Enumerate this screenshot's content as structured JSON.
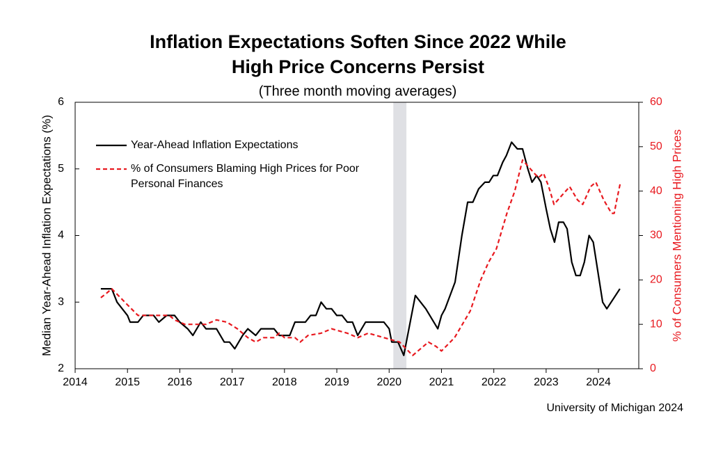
{
  "chart_data": {
    "type": "line",
    "title": "Inflation Expectations Soften Since 2022 While High Price Concerns Persist",
    "subtitle": "(Three month moving averages)",
    "y_label": "Median Year-Ahead Inflation Expectations (%)",
    "y2_label": "% of Consumers Mentioning High Prices",
    "source": "University of Michigan 2024",
    "xlim": [
      2014,
      2024.77
    ],
    "xticks": [
      2014,
      2015,
      2016,
      2017,
      2018,
      2019,
      2020,
      2021,
      2022,
      2023,
      2024
    ],
    "ylim": [
      2,
      6
    ],
    "yticks": [
      2,
      3,
      4,
      5,
      6
    ],
    "y2lim": [
      0,
      60
    ],
    "y2ticks": [
      0,
      10,
      20,
      30,
      40,
      50,
      60
    ],
    "shaded_region": [
      2020.08,
      2020.33
    ],
    "legend": "upper left",
    "series": [
      {
        "name": "Year-Ahead Inflation Expectations",
        "color": "#000000",
        "dash": "solid",
        "x": [
          2014.49,
          2014.7,
          2014.8,
          2015.0,
          2015.05,
          2015.2,
          2015.3,
          2015.5,
          2015.6,
          2015.75,
          2015.9,
          2016.0,
          2016.15,
          2016.25,
          2016.4,
          2016.5,
          2016.7,
          2016.85,
          2016.95,
          2017.05,
          2017.2,
          2017.3,
          2017.45,
          2017.55,
          2017.8,
          2017.9,
          2018.1,
          2018.2,
          2018.4,
          2018.5,
          2018.6,
          2018.7,
          2018.8,
          2018.9,
          2019.0,
          2019.1,
          2019.2,
          2019.3,
          2019.4,
          2019.55,
          2019.9,
          2020.0,
          2020.05,
          2020.17,
          2020.28,
          2020.5,
          2020.7,
          2020.93,
          2021.0,
          2021.07,
          2021.26,
          2021.39,
          2021.5,
          2021.6,
          2021.71,
          2021.83,
          2021.91,
          2021.99,
          2022.07,
          2022.17,
          2022.24,
          2022.34,
          2022.45,
          2022.55,
          2022.65,
          2022.73,
          2022.82,
          2022.9,
          2023.0,
          2023.08,
          2023.16,
          2023.24,
          2023.33,
          2023.4,
          2023.49,
          2023.57,
          2023.65,
          2023.73,
          2023.82,
          2023.9,
          2023.98,
          2024.08,
          2024.16,
          2024.41
        ],
        "values": [
          3.2,
          3.2,
          3.0,
          2.8,
          2.7,
          2.7,
          2.8,
          2.8,
          2.7,
          2.8,
          2.8,
          2.7,
          2.6,
          2.5,
          2.7,
          2.6,
          2.6,
          2.4,
          2.4,
          2.3,
          2.5,
          2.6,
          2.5,
          2.6,
          2.6,
          2.5,
          2.5,
          2.7,
          2.7,
          2.8,
          2.8,
          3.0,
          2.9,
          2.9,
          2.8,
          2.8,
          2.7,
          2.7,
          2.5,
          2.7,
          2.7,
          2.6,
          2.4,
          2.4,
          2.2,
          3.1,
          2.9,
          2.6,
          2.8,
          2.9,
          3.3,
          4.0,
          4.5,
          4.5,
          4.7,
          4.8,
          4.8,
          4.9,
          4.9,
          5.1,
          5.2,
          5.4,
          5.3,
          5.3,
          5.0,
          4.8,
          4.9,
          4.8,
          4.4,
          4.1,
          3.9,
          4.2,
          4.2,
          4.1,
          3.6,
          3.4,
          3.4,
          3.6,
          4.0,
          3.9,
          3.5,
          3.0,
          2.9,
          3.2
        ]
      },
      {
        "name": "% of Consumers Blaming High Prices for Poor Personal Finances",
        "color": "#e8191f",
        "dash": "dashed",
        "axis": "y2",
        "x": [
          2014.49,
          2014.6,
          2014.7,
          2014.95,
          2015.2,
          2015.8,
          2015.9,
          2016.1,
          2016.5,
          2016.7,
          2016.9,
          2017.1,
          2017.3,
          2017.45,
          2017.6,
          2017.8,
          2017.9,
          2018.0,
          2018.2,
          2018.3,
          2018.45,
          2018.7,
          2018.9,
          2019.2,
          2019.4,
          2019.6,
          2019.9,
          2020.2,
          2020.45,
          2020.75,
          2020.9,
          2021.0,
          2021.25,
          2021.55,
          2021.75,
          2021.9,
          2022.05,
          2022.25,
          2022.4,
          2022.55,
          2022.7,
          2022.85,
          2022.95,
          2023.05,
          2023.15,
          2023.3,
          2023.45,
          2023.6,
          2023.7,
          2023.85,
          2023.95,
          2024.1,
          2024.25,
          2024.3,
          2024.35,
          2024.42
        ],
        "values": [
          16,
          17,
          18,
          15,
          12,
          12,
          11,
          10,
          10,
          11,
          10.5,
          9,
          7,
          6,
          7,
          7,
          8,
          7,
          7,
          6,
          7.5,
          8,
          9,
          8,
          7,
          8,
          7,
          6,
          3,
          6,
          5,
          4,
          7,
          13,
          20,
          24,
          27,
          35,
          40,
          47,
          45,
          43,
          44,
          41,
          37,
          39,
          41,
          38,
          37,
          41,
          42,
          38,
          35,
          35,
          38,
          42
        ]
      }
    ]
  }
}
